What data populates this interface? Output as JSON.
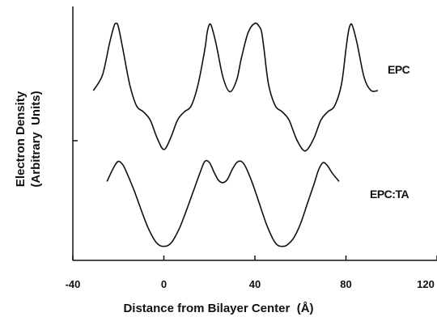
{
  "chart_data": {
    "type": "line",
    "xlabel": "Distance from Bilayer Center  (Å)",
    "ylabel": [
      "Electron Density",
      "(Arbitrary  Units)"
    ],
    "xlim": [
      -40,
      120
    ],
    "x_ticks": [
      "-40",
      "0",
      "40",
      "80",
      "120"
    ],
    "x_tick_values": [
      -40,
      0,
      40,
      80,
      120
    ],
    "ylim": [
      0,
      10
    ],
    "grid": false,
    "series": [
      {
        "name": "EPC",
        "x": [
          -31,
          -27,
          -24,
          -22,
          -21,
          -20,
          -18,
          -15,
          -12,
          -9,
          -6,
          -3,
          0,
          3,
          6,
          9,
          12,
          15,
          18,
          19,
          20,
          21,
          23,
          26,
          29,
          32,
          34,
          37,
          40,
          42,
          43,
          44,
          46,
          49,
          52,
          55,
          58,
          61,
          63,
          66,
          69,
          72,
          75,
          78,
          80,
          81,
          82,
          83,
          85,
          88,
          91,
          94
        ],
        "values": [
          6.85,
          7.5,
          8.8,
          9.55,
          9.7,
          9.55,
          8.6,
          7.1,
          6.2,
          5.95,
          5.6,
          4.85,
          4.35,
          4.85,
          5.6,
          5.95,
          6.2,
          7.1,
          8.6,
          9.3,
          9.65,
          9.55,
          8.8,
          7.4,
          6.8,
          7.3,
          8.2,
          9.3,
          9.7,
          9.55,
          9.3,
          8.6,
          7.1,
          6.2,
          5.95,
          5.6,
          4.85,
          4.35,
          4.35,
          4.85,
          5.6,
          5.95,
          6.2,
          7.1,
          8.6,
          9.3,
          9.65,
          9.55,
          8.8,
          7.4,
          6.85,
          6.85
        ]
      },
      {
        "name": "EPC:TA",
        "x": [
          -25,
          -22,
          -20,
          -18,
          -16,
          -13,
          -10,
          -7,
          -4,
          -2,
          0,
          2,
          4,
          7,
          10,
          13,
          16,
          18,
          20,
          22,
          24,
          26,
          28,
          30,
          32,
          34,
          36,
          39,
          42,
          45,
          48,
          50,
          52,
          54,
          57,
          60,
          63,
          66,
          68,
          70,
          72,
          74,
          77
        ],
        "values": [
          3.0,
          3.6,
          3.85,
          3.7,
          3.3,
          2.6,
          1.8,
          1.05,
          0.5,
          0.3,
          0.25,
          0.3,
          0.5,
          1.05,
          1.8,
          2.6,
          3.4,
          3.85,
          3.8,
          3.4,
          3.05,
          2.95,
          3.1,
          3.5,
          3.8,
          3.85,
          3.6,
          2.9,
          2.05,
          1.2,
          0.55,
          0.3,
          0.25,
          0.3,
          0.6,
          1.2,
          2.05,
          2.9,
          3.5,
          3.8,
          3.65,
          3.35,
          3.0
        ]
      }
    ],
    "annotations": [
      "EPC",
      "EPC:TA"
    ]
  }
}
